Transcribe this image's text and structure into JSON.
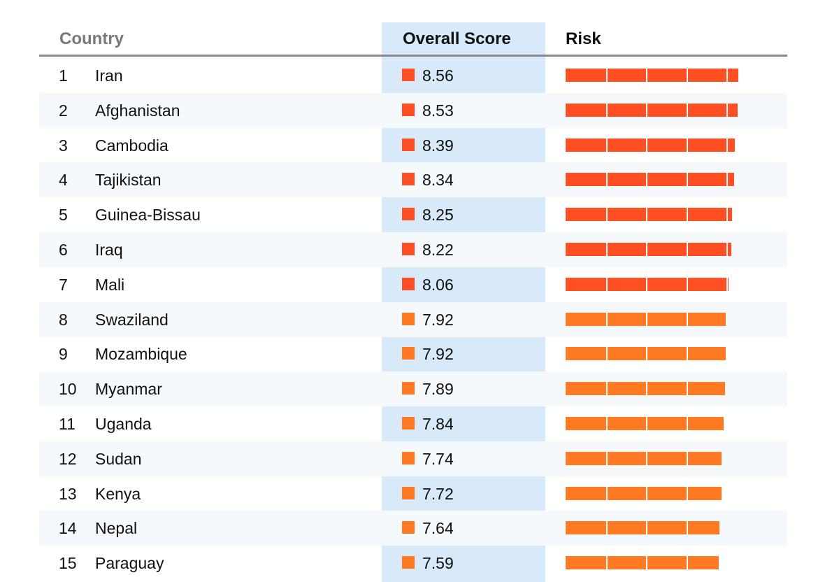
{
  "header": {
    "country_label": "Country",
    "score_label": "Overall Score",
    "risk_label": "Risk"
  },
  "colors": {
    "high_risk": "#ff4f23",
    "medium_risk": "#ff7a23",
    "score_column_bg": "#d8e9f9",
    "header_rule": "#8a8a8a"
  },
  "chart_data": {
    "type": "table",
    "columns": [
      "Country",
      "Overall Score",
      "Risk"
    ],
    "risk_scale_max": 10,
    "rows": [
      {
        "rank": "1",
        "country": "Iran",
        "score": 8.56,
        "score_text": "8.56",
        "tier": "high"
      },
      {
        "rank": "2",
        "country": "Afghanistan",
        "score": 8.53,
        "score_text": "8.53",
        "tier": "high"
      },
      {
        "rank": "3",
        "country": "Cambodia",
        "score": 8.39,
        "score_text": "8.39",
        "tier": "high"
      },
      {
        "rank": "4",
        "country": "Tajikistan",
        "score": 8.34,
        "score_text": "8.34",
        "tier": "high"
      },
      {
        "rank": "5",
        "country": "Guinea-Bissau",
        "score": 8.25,
        "score_text": "8.25",
        "tier": "high"
      },
      {
        "rank": "6",
        "country": "Iraq",
        "score": 8.22,
        "score_text": "8.22",
        "tier": "high"
      },
      {
        "rank": "7",
        "country": "Mali",
        "score": 8.06,
        "score_text": "8.06",
        "tier": "high"
      },
      {
        "rank": "8",
        "country": "Swaziland",
        "score": 7.92,
        "score_text": "7.92",
        "tier": "medium"
      },
      {
        "rank": "9",
        "country": "Mozambique",
        "score": 7.92,
        "score_text": "7.92",
        "tier": "medium"
      },
      {
        "rank": "10",
        "country": "Myanmar",
        "score": 7.89,
        "score_text": "7.89",
        "tier": "medium"
      },
      {
        "rank": "11",
        "country": "Uganda",
        "score": 7.84,
        "score_text": "7.84",
        "tier": "medium"
      },
      {
        "rank": "12",
        "country": "Sudan",
        "score": 7.74,
        "score_text": "7.74",
        "tier": "medium"
      },
      {
        "rank": "13",
        "country": "Kenya",
        "score": 7.72,
        "score_text": "7.72",
        "tier": "medium"
      },
      {
        "rank": "14",
        "country": "Nepal",
        "score": 7.64,
        "score_text": "7.64",
        "tier": "medium"
      },
      {
        "rank": "15",
        "country": "Paraguay",
        "score": 7.59,
        "score_text": "7.59",
        "tier": "medium"
      }
    ]
  }
}
